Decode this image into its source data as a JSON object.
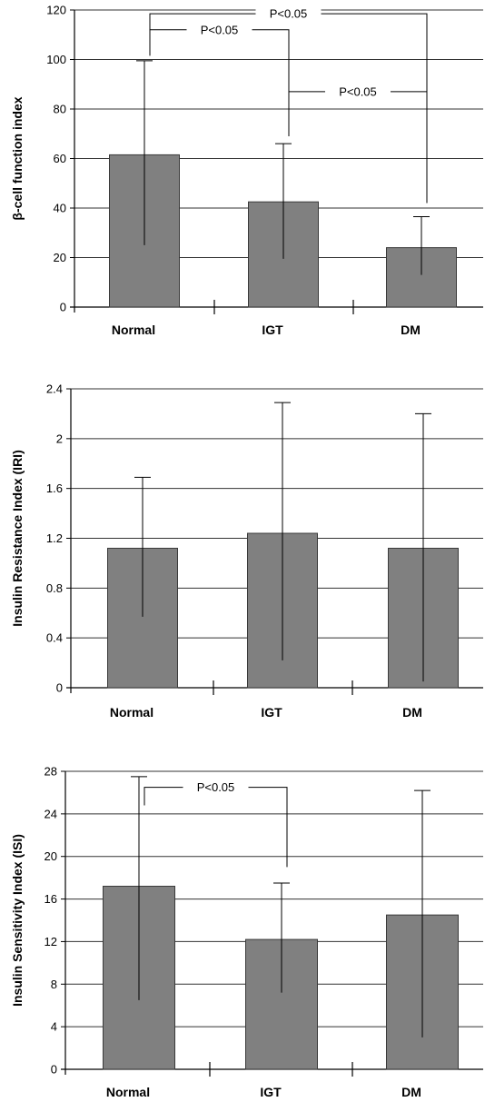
{
  "colors": {
    "bar": "#808080",
    "bar_stroke": "#3a3a3a",
    "grid": "#333333",
    "axis": "#000000"
  },
  "chart_data": [
    {
      "type": "bar",
      "ylabel": "β-cell function index",
      "categories": [
        "Normal",
        "IGT",
        "DM"
      ],
      "values": [
        61.5,
        42.5,
        24
      ],
      "error_high": [
        99.5,
        66,
        36.5
      ],
      "error_low": [
        25,
        19.5,
        13
      ],
      "ylim": [
        0,
        120
      ],
      "yticks": [
        0,
        20,
        40,
        60,
        80,
        100,
        120
      ],
      "ytick_labels": [
        "0",
        "20",
        "40",
        "60",
        "80",
        "100",
        "120"
      ],
      "grid": true,
      "annotations": [
        {
          "text": "P<0.05",
          "from": 0,
          "to": 1,
          "left_end": 101.5,
          "right_end": 69,
          "top": 112
        },
        {
          "text": "P<0.05",
          "from": 0,
          "to": 2,
          "left_end": 107,
          "right_end": 42,
          "top": 118.5
        },
        {
          "text": "P<0.05",
          "from": 1,
          "to": 2,
          "left_end": 69,
          "right_end": 43.5,
          "top": 87
        }
      ]
    },
    {
      "type": "bar",
      "ylabel": "Insulin Resistance Index (IRI)",
      "categories": [
        "Normal",
        "IGT",
        "DM"
      ],
      "values": [
        1.12,
        1.24,
        1.12
      ],
      "error_high": [
        1.69,
        2.29,
        2.2
      ],
      "error_low": [
        0.57,
        0.22,
        0.05
      ],
      "ylim": [
        0,
        2.4
      ],
      "yticks": [
        0,
        0.4,
        0.8,
        1.2,
        1.6,
        2,
        2.4
      ],
      "ytick_labels": [
        "0",
        "0.4",
        "0.8",
        "1.2",
        "1.6",
        "2",
        "2.4"
      ],
      "grid": true,
      "annotations": []
    },
    {
      "type": "bar",
      "ylabel": "Insulin Sensitivity Index (ISI)",
      "categories": [
        "Normal",
        "IGT",
        "DM"
      ],
      "values": [
        17.2,
        12.2,
        14.5
      ],
      "error_high": [
        27.5,
        17.5,
        26.2
      ],
      "error_low": [
        6.5,
        7.2,
        3
      ],
      "ylim": [
        0,
        28
      ],
      "yticks": [
        0,
        4,
        8,
        12,
        16,
        20,
        24,
        28
      ],
      "ytick_labels": [
        "0",
        "4",
        "8",
        "12",
        "16",
        "20",
        "24",
        "28"
      ],
      "grid": true,
      "annotations": [
        {
          "text": "P<0.05",
          "from": 0,
          "to": 1,
          "left_end": 24.8,
          "right_end": 19,
          "top": 26.5
        }
      ]
    }
  ]
}
